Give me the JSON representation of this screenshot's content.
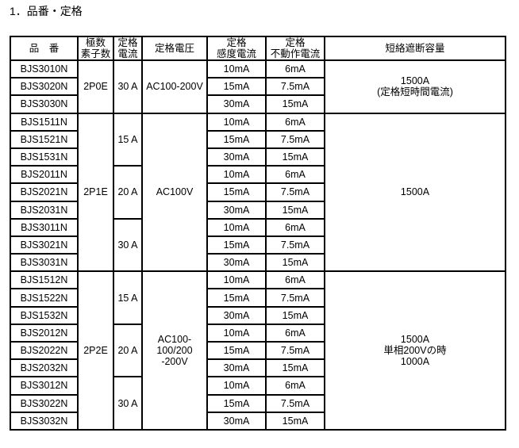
{
  "heading": "1．品番・定格",
  "headers": [
    "品　番",
    "極数\n素子数",
    "定格\n電流",
    "定格電圧",
    "定格\n感度電流",
    "定格\n不動作電流",
    "短絡遮断容量"
  ],
  "groups": [
    {
      "poles": "2P0E",
      "voltage": "AC100-200V",
      "capacity": "1500A\n(定格短時間電流)",
      "currents": [
        {
          "rated": "30 A",
          "rows": [
            [
              "BJS3010N",
              "10mA",
              "6mA"
            ],
            [
              "BJS3020N",
              "15mA",
              "7.5mA"
            ],
            [
              "BJS3030N",
              "30mA",
              "15mA"
            ]
          ]
        }
      ]
    },
    {
      "poles": "2P1E",
      "voltage": "AC100V",
      "capacity": "1500A",
      "currents": [
        {
          "rated": "15 A",
          "rows": [
            [
              "BJS1511N",
              "10mA",
              "6mA"
            ],
            [
              "BJS1521N",
              "15mA",
              "7.5mA"
            ],
            [
              "BJS1531N",
              "30mA",
              "15mA"
            ]
          ]
        },
        {
          "rated": "20 A",
          "rows": [
            [
              "BJS2011N",
              "10mA",
              "6mA"
            ],
            [
              "BJS2021N",
              "15mA",
              "7.5mA"
            ],
            [
              "BJS2031N",
              "30mA",
              "15mA"
            ]
          ]
        },
        {
          "rated": "30 A",
          "rows": [
            [
              "BJS3011N",
              "10mA",
              "6mA"
            ],
            [
              "BJS3021N",
              "15mA",
              "7.5mA"
            ],
            [
              "BJS3031N",
              "30mA",
              "15mA"
            ]
          ]
        }
      ]
    },
    {
      "poles": "2P2E",
      "voltage": "AC100-\n100/200\n-200V",
      "capacity": "1500A\n単相200Vの時\n1000A",
      "currents": [
        {
          "rated": "15 A",
          "rows": [
            [
              "BJS1512N",
              "10mA",
              "6mA"
            ],
            [
              "BJS1522N",
              "15mA",
              "7.5mA"
            ],
            [
              "BJS1532N",
              "30mA",
              "15mA"
            ]
          ]
        },
        {
          "rated": "20 A",
          "rows": [
            [
              "BJS2012N",
              "10mA",
              "6mA"
            ],
            [
              "BJS2022N",
              "15mA",
              "7.5mA"
            ],
            [
              "BJS2032N",
              "30mA",
              "15mA"
            ]
          ]
        },
        {
          "rated": "30 A",
          "rows": [
            [
              "BJS3012N",
              "10mA",
              "6mA"
            ],
            [
              "BJS3022N",
              "15mA",
              "7.5mA"
            ],
            [
              "BJS3032N",
              "30mA",
              "15mA"
            ]
          ]
        }
      ]
    }
  ]
}
